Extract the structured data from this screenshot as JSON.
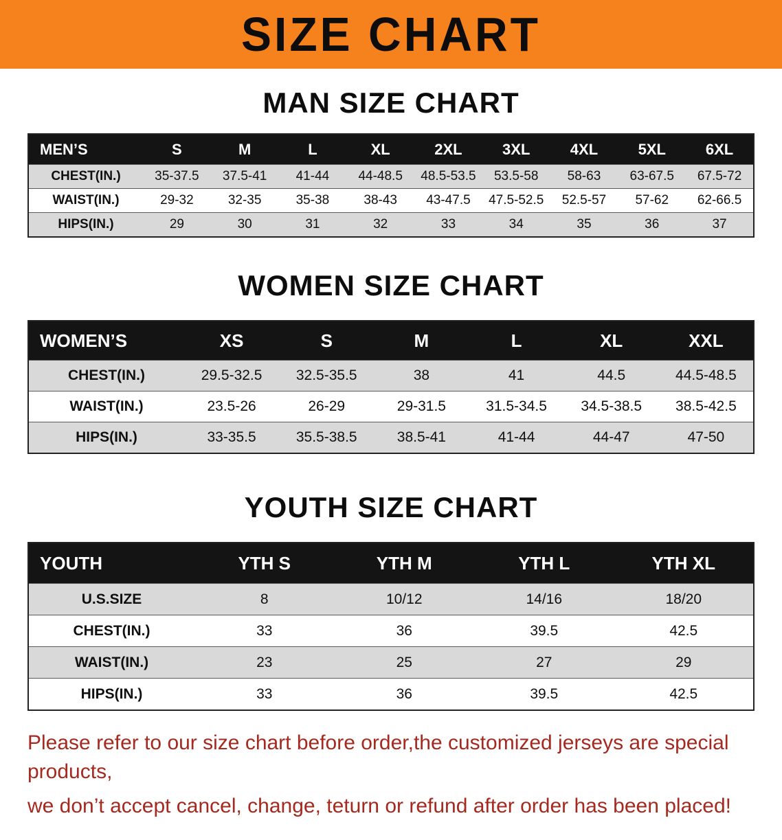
{
  "banner": {
    "title": "SIZE CHART",
    "bg_color": "#f5821c"
  },
  "tables": {
    "men": {
      "heading": "MAN SIZE CHART",
      "header": [
        "MEN’S",
        "S",
        "M",
        "L",
        "XL",
        "2XL",
        "3XL",
        "4XL",
        "5XL",
        "6XL"
      ],
      "rows": [
        [
          "CHEST(IN.)",
          "35-37.5",
          "37.5-41",
          "41-44",
          "44-48.5",
          "48.5-53.5",
          "53.5-58",
          "58-63",
          "63-67.5",
          "67.5-72"
        ],
        [
          "WAIST(IN.)",
          "29-32",
          "32-35",
          "35-38",
          "38-43",
          "43-47.5",
          "47.5-52.5",
          "52.5-57",
          "57-62",
          "62-66.5"
        ],
        [
          "HIPS(IN.)",
          "29",
          "30",
          "31",
          "32",
          "33",
          "34",
          "35",
          "36",
          "37"
        ]
      ]
    },
    "women": {
      "heading": "WOMEN SIZE CHART",
      "header": [
        "WOMEN’S",
        "XS",
        "S",
        "M",
        "L",
        "XL",
        "XXL"
      ],
      "rows": [
        [
          "CHEST(IN.)",
          "29.5-32.5",
          "32.5-35.5",
          "38",
          "41",
          "44.5",
          "44.5-48.5"
        ],
        [
          "WAIST(IN.)",
          "23.5-26",
          "26-29",
          "29-31.5",
          "31.5-34.5",
          "34.5-38.5",
          "38.5-42.5"
        ],
        [
          "HIPS(IN.)",
          "33-35.5",
          "35.5-38.5",
          "38.5-41",
          "41-44",
          "44-47",
          "47-50"
        ]
      ]
    },
    "youth": {
      "heading": "YOUTH SIZE CHART",
      "header": [
        "YOUTH",
        "YTH S",
        "YTH M",
        "YTH L",
        "YTH XL"
      ],
      "rows": [
        [
          "U.S.SIZE",
          "8",
          "10/12",
          "14/16",
          "18/20"
        ],
        [
          "CHEST(IN.)",
          "33",
          "36",
          "39.5",
          "42.5"
        ],
        [
          "WAIST(IN.)",
          "23",
          "25",
          "27",
          "29"
        ],
        [
          "HIPS(IN.)",
          "33",
          "36",
          "39.5",
          "42.5"
        ]
      ]
    }
  },
  "disclaimer": {
    "line1": "Please refer to our size chart before order,the customized jerseys are special products,",
    "line2": "we don’t accept cancel, change, teturn or refund after order has been placed!",
    "color": "#a5291f"
  }
}
